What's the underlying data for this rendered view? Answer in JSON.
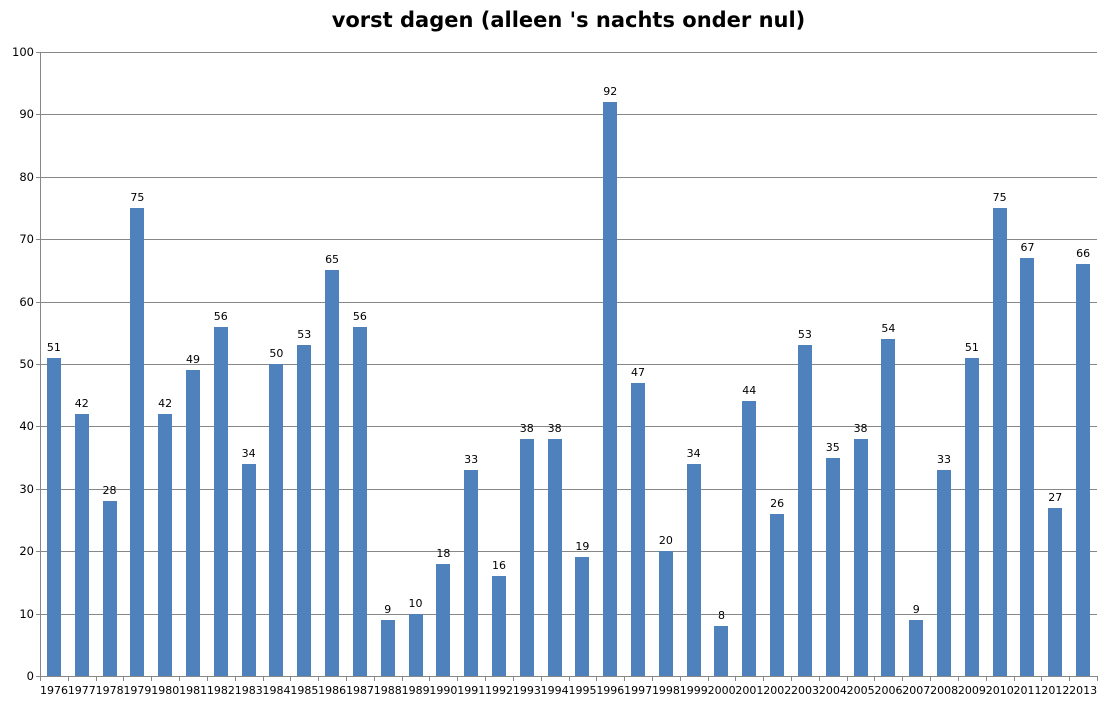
{
  "chart_data": {
    "type": "bar",
    "title": "vorst dagen (alleen 's nachts onder nul)",
    "categories": [
      "1976",
      "1977",
      "1978",
      "1979",
      "1980",
      "1981",
      "1982",
      "1983",
      "1984",
      "1985",
      "1986",
      "1987",
      "1988",
      "1989",
      "1990",
      "1991",
      "1992",
      "1993",
      "1994",
      "1995",
      "1996",
      "1997",
      "1998",
      "1999",
      "2000",
      "2001",
      "2002",
      "2003",
      "2004",
      "2005",
      "2006",
      "2007",
      "2008",
      "2009",
      "2010",
      "2011",
      "2012",
      "2013"
    ],
    "values": [
      51,
      42,
      28,
      75,
      42,
      49,
      56,
      34,
      50,
      53,
      65,
      56,
      9,
      10,
      18,
      33,
      16,
      38,
      38,
      19,
      92,
      47,
      20,
      34,
      8,
      44,
      26,
      53,
      35,
      38,
      54,
      9,
      33,
      51,
      75,
      67,
      27,
      66
    ],
    "xlabel": "",
    "ylabel": "",
    "ylim": [
      0,
      100
    ],
    "ytick_step": 10,
    "grid": true,
    "legend_position": "none",
    "data_labels": true,
    "bar_color": "#4F81BD",
    "gridline_color": "#878787",
    "axis_color": "#878787",
    "text_color": "#000000",
    "background_color": "#ffffff"
  }
}
